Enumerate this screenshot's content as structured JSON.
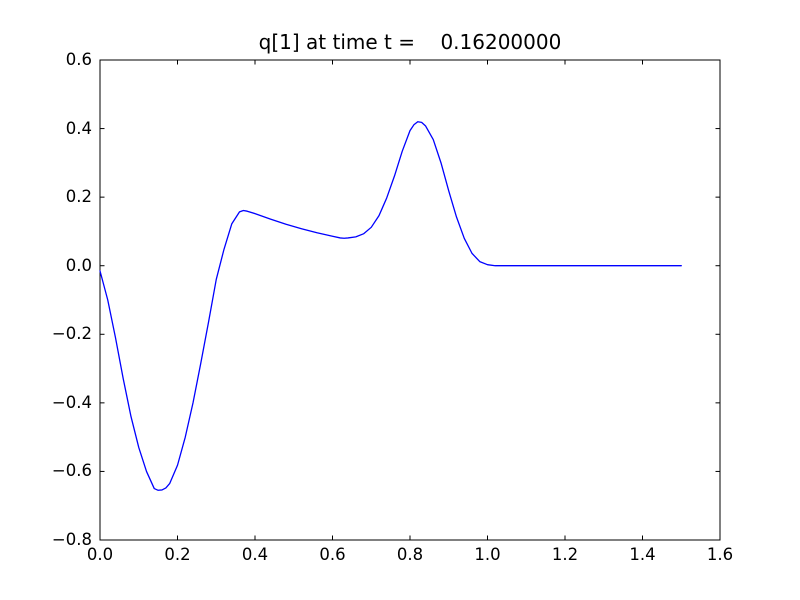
{
  "figure": {
    "background": "#ffffff",
    "frame_color": "#000000",
    "text_color": "#000000"
  },
  "chart_data": {
    "type": "line",
    "title": "q[1] at time t =    0.16200000",
    "xlabel": "",
    "ylabel": "",
    "xlim": [
      0.0,
      1.6
    ],
    "ylim": [
      -0.8,
      0.6
    ],
    "grid": false,
    "legend": null,
    "x_ticks": [
      0.0,
      0.2,
      0.4,
      0.6,
      0.8,
      1.0,
      1.2,
      1.4,
      1.6
    ],
    "x_tick_labels": [
      "0.0",
      "0.2",
      "0.4",
      "0.6",
      "0.8",
      "1.0",
      "1.2",
      "1.4",
      "1.6"
    ],
    "y_ticks": [
      -0.8,
      -0.6,
      -0.4,
      -0.2,
      0.0,
      0.2,
      0.4,
      0.6
    ],
    "y_tick_labels": [
      "−0.8",
      "−0.6",
      "−0.4",
      "−0.2",
      "0.0",
      "0.2",
      "0.4",
      "0.6"
    ],
    "series": [
      {
        "name": "q[1]",
        "color": "#0000ff",
        "x": [
          0.0,
          0.02,
          0.04,
          0.06,
          0.08,
          0.1,
          0.12,
          0.14,
          0.15,
          0.16,
          0.17,
          0.18,
          0.2,
          0.22,
          0.24,
          0.26,
          0.28,
          0.3,
          0.32,
          0.34,
          0.36,
          0.37,
          0.38,
          0.4,
          0.44,
          0.48,
          0.52,
          0.56,
          0.6,
          0.62,
          0.63,
          0.64,
          0.66,
          0.68,
          0.7,
          0.72,
          0.74,
          0.76,
          0.78,
          0.8,
          0.81,
          0.82,
          0.83,
          0.84,
          0.86,
          0.88,
          0.9,
          0.92,
          0.94,
          0.96,
          0.98,
          1.0,
          1.02,
          1.05,
          1.1,
          1.2,
          1.3,
          1.4,
          1.5
        ],
        "y": [
          -0.015,
          -0.1,
          -0.21,
          -0.33,
          -0.44,
          -0.53,
          -0.6,
          -0.65,
          -0.655,
          -0.654,
          -0.648,
          -0.635,
          -0.582,
          -0.5,
          -0.4,
          -0.285,
          -0.165,
          -0.04,
          0.048,
          0.122,
          0.157,
          0.161,
          0.159,
          0.152,
          0.136,
          0.121,
          0.108,
          0.096,
          0.086,
          0.081,
          0.08,
          0.081,
          0.084,
          0.093,
          0.112,
          0.146,
          0.198,
          0.262,
          0.334,
          0.394,
          0.411,
          0.42,
          0.418,
          0.408,
          0.368,
          0.3,
          0.218,
          0.142,
          0.08,
          0.036,
          0.012,
          0.003,
          0.0,
          0.0,
          0.0,
          0.0,
          0.0,
          0.0,
          0.0
        ]
      }
    ]
  }
}
